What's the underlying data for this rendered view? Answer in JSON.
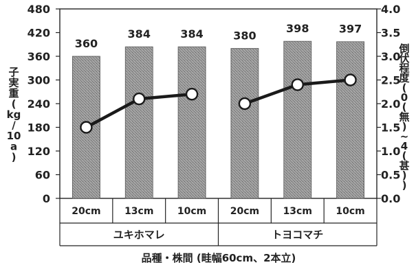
{
  "chart_data": {
    "type": "bar",
    "categories": [
      "20cm",
      "13cm",
      "10cm",
      "20cm",
      "13cm",
      "10cm"
    ],
    "groups": [
      {
        "label": "ユキホマレ",
        "span": [
          0,
          2
        ]
      },
      {
        "label": "トヨコマチ",
        "span": [
          3,
          5
        ]
      }
    ],
    "series": [
      {
        "values": [
          360,
          384,
          384,
          380,
          398,
          397
        ],
        "type": "bar",
        "axis": "left",
        "color": "#8c8c8c"
      },
      {
        "values": [
          1.5,
          2.1,
          2.2,
          2.0,
          2.4,
          2.5
        ],
        "type": "line",
        "axis": "right",
        "color": "#1a1a1a"
      }
    ],
    "data_labels": [
      "360",
      "384",
      "384",
      "380",
      "398",
      "397"
    ],
    "y_left": {
      "label_chars": [
        "子",
        "実",
        "重",
        "(",
        "kg",
        "/",
        "10",
        "a",
        ")"
      ],
      "ticks": [
        "0",
        "60",
        "120",
        "180",
        "240",
        "300",
        "360",
        "420",
        "480"
      ],
      "lim": [
        0,
        480
      ]
    },
    "y_right": {
      "label_chars": [
        "倒",
        "伏",
        "程",
        "度",
        "(",
        "0",
        "(",
        "無",
        ")",
        "~",
        "4",
        "(",
        "甚",
        ")",
        ")"
      ],
      "ticks": [
        "0.0",
        "0.5",
        "1.0",
        "1.5",
        "2.0",
        "2.5",
        "3.0",
        "3.5",
        "4.0"
      ],
      "lim": [
        0,
        4
      ]
    },
    "xlabel": "品種・株間 (畦幅60cm、2本立)",
    "grid": false
  }
}
